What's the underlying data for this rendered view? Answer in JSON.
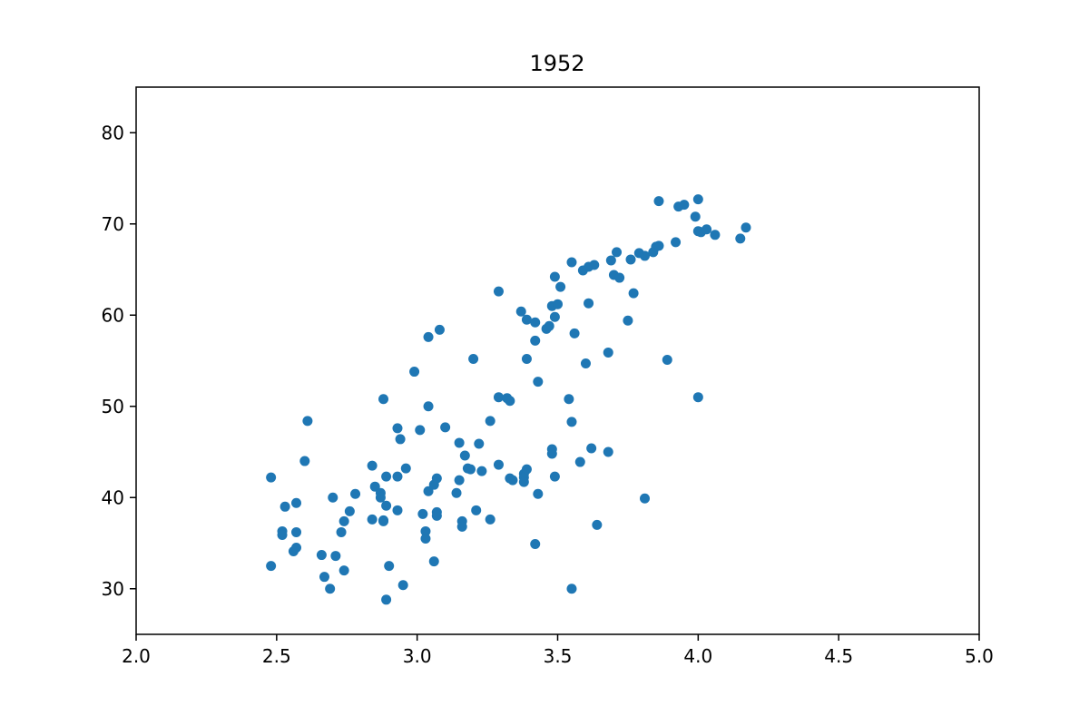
{
  "chart_data": {
    "type": "scatter",
    "title": "1952",
    "xlabel": "",
    "ylabel": "",
    "xlim": [
      2.0,
      5.0
    ],
    "ylim": [
      25,
      85
    ],
    "xticks": [
      "2.0",
      "2.5",
      "3.0",
      "3.5",
      "4.0",
      "4.5",
      "5.0"
    ],
    "yticks": [
      "30",
      "40",
      "50",
      "60",
      "70",
      "80"
    ],
    "grid": false,
    "marker_color": "#1f77b4",
    "points": [
      [
        2.48,
        42.2
      ],
      [
        2.48,
        32.5
      ],
      [
        2.52,
        36.3
      ],
      [
        2.52,
        35.9
      ],
      [
        2.53,
        39.0
      ],
      [
        2.56,
        34.1
      ],
      [
        2.57,
        34.5
      ],
      [
        2.57,
        36.2
      ],
      [
        2.57,
        39.4
      ],
      [
        2.6,
        44.0
      ],
      [
        2.61,
        48.4
      ],
      [
        2.66,
        33.7
      ],
      [
        2.67,
        31.3
      ],
      [
        2.69,
        30.0
      ],
      [
        2.7,
        40.0
      ],
      [
        2.71,
        33.6
      ],
      [
        2.73,
        36.2
      ],
      [
        2.74,
        37.4
      ],
      [
        2.74,
        32.0
      ],
      [
        2.76,
        38.5
      ],
      [
        2.78,
        40.4
      ],
      [
        2.84,
        43.5
      ],
      [
        2.84,
        37.6
      ],
      [
        2.85,
        41.2
      ],
      [
        2.87,
        40.5
      ],
      [
        2.87,
        40.0
      ],
      [
        2.88,
        37.5
      ],
      [
        2.88,
        37.4
      ],
      [
        2.88,
        50.8
      ],
      [
        2.89,
        42.3
      ],
      [
        2.89,
        39.1
      ],
      [
        2.89,
        28.8
      ],
      [
        2.9,
        32.5
      ],
      [
        2.93,
        47.6
      ],
      [
        2.93,
        42.3
      ],
      [
        2.93,
        38.6
      ],
      [
        2.94,
        46.4
      ],
      [
        2.95,
        30.4
      ],
      [
        2.96,
        43.2
      ],
      [
        2.99,
        53.8
      ],
      [
        3.01,
        47.4
      ],
      [
        3.02,
        38.2
      ],
      [
        3.03,
        36.3
      ],
      [
        3.03,
        35.5
      ],
      [
        3.04,
        57.6
      ],
      [
        3.04,
        50.0
      ],
      [
        3.04,
        40.7
      ],
      [
        3.06,
        33.0
      ],
      [
        3.06,
        41.4
      ],
      [
        3.07,
        42.1
      ],
      [
        3.07,
        38.4
      ],
      [
        3.07,
        38.0
      ],
      [
        3.08,
        58.4
      ],
      [
        3.1,
        47.7
      ],
      [
        3.14,
        40.5
      ],
      [
        3.15,
        46.0
      ],
      [
        3.15,
        41.9
      ],
      [
        3.16,
        37.4
      ],
      [
        3.16,
        36.8
      ],
      [
        3.17,
        44.6
      ],
      [
        3.18,
        43.2
      ],
      [
        3.19,
        43.1
      ],
      [
        3.2,
        55.2
      ],
      [
        3.21,
        38.6
      ],
      [
        3.22,
        45.9
      ],
      [
        3.23,
        42.9
      ],
      [
        3.26,
        48.4
      ],
      [
        3.26,
        37.6
      ],
      [
        3.29,
        62.6
      ],
      [
        3.29,
        51.0
      ],
      [
        3.29,
        43.6
      ],
      [
        3.32,
        50.9
      ],
      [
        3.33,
        50.6
      ],
      [
        3.33,
        42.1
      ],
      [
        3.34,
        41.9
      ],
      [
        3.37,
        60.4
      ],
      [
        3.38,
        42.6
      ],
      [
        3.38,
        42.2
      ],
      [
        3.38,
        41.7
      ],
      [
        3.39,
        59.5
      ],
      [
        3.39,
        55.2
      ],
      [
        3.39,
        43.1
      ],
      [
        3.42,
        59.2
      ],
      [
        3.42,
        57.2
      ],
      [
        3.42,
        34.9
      ],
      [
        3.43,
        52.7
      ],
      [
        3.43,
        40.4
      ],
      [
        3.46,
        58.5
      ],
      [
        3.47,
        58.8
      ],
      [
        3.48,
        61.0
      ],
      [
        3.48,
        45.3
      ],
      [
        3.48,
        44.8
      ],
      [
        3.49,
        64.2
      ],
      [
        3.49,
        59.8
      ],
      [
        3.49,
        42.3
      ],
      [
        3.5,
        61.2
      ],
      [
        3.51,
        63.1
      ],
      [
        3.54,
        50.8
      ],
      [
        3.55,
        65.8
      ],
      [
        3.55,
        48.3
      ],
      [
        3.55,
        30.0
      ],
      [
        3.56,
        58.0
      ],
      [
        3.58,
        43.9
      ],
      [
        3.59,
        64.9
      ],
      [
        3.6,
        54.7
      ],
      [
        3.61,
        65.3
      ],
      [
        3.61,
        61.3
      ],
      [
        3.62,
        45.4
      ],
      [
        3.63,
        65.5
      ],
      [
        3.64,
        37.0
      ],
      [
        3.68,
        55.9
      ],
      [
        3.68,
        45.0
      ],
      [
        3.69,
        66.0
      ],
      [
        3.7,
        64.4
      ],
      [
        3.71,
        66.9
      ],
      [
        3.72,
        64.1
      ],
      [
        3.75,
        59.4
      ],
      [
        3.76,
        66.1
      ],
      [
        3.77,
        62.4
      ],
      [
        3.79,
        66.8
      ],
      [
        3.81,
        66.5
      ],
      [
        3.81,
        39.9
      ],
      [
        3.84,
        66.9
      ],
      [
        3.85,
        67.5
      ],
      [
        3.86,
        67.6
      ],
      [
        3.86,
        72.5
      ],
      [
        3.89,
        55.1
      ],
      [
        3.92,
        68.0
      ],
      [
        3.93,
        71.9
      ],
      [
        3.95,
        72.1
      ],
      [
        3.99,
        70.8
      ],
      [
        4.0,
        69.2
      ],
      [
        4.0,
        51.0
      ],
      [
        4.0,
        72.7
      ],
      [
        4.01,
        69.1
      ],
      [
        4.03,
        69.4
      ],
      [
        4.06,
        68.8
      ],
      [
        4.15,
        68.4
      ],
      [
        4.17,
        69.6
      ]
    ]
  }
}
